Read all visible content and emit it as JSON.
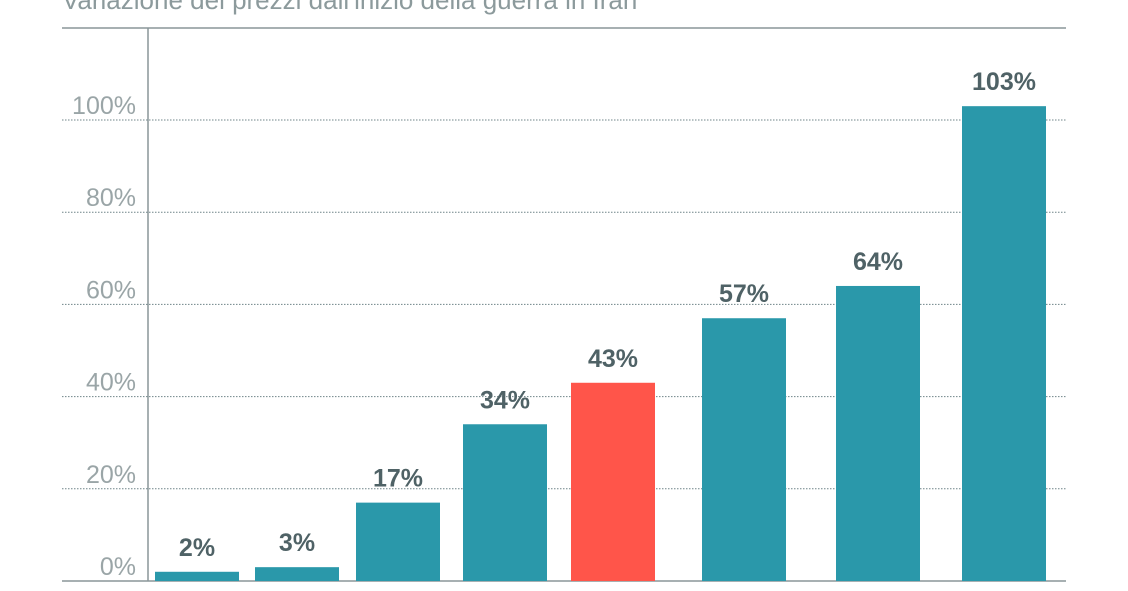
{
  "chart_data": {
    "type": "bar",
    "title": "Variazione dei prezzi dall'inizio della guerra in Iran",
    "xlabel": "",
    "ylabel": "",
    "ylim": [
      0,
      100
    ],
    "yticks": [
      "0%",
      "20%",
      "40%",
      "60%",
      "80%",
      "100%"
    ],
    "ytick_values": [
      0,
      20,
      40,
      60,
      80,
      100
    ],
    "grid": true,
    "values": [
      2,
      3,
      17,
      34,
      43,
      57,
      64,
      103
    ],
    "labels": [
      "2%",
      "3%",
      "17%",
      "34%",
      "43%",
      "57%",
      "64%",
      "103%"
    ],
    "highlight_index": 4,
    "colors": {
      "bar": "#2a98aa",
      "highlight": "#ff554a",
      "grid": "#6f8488",
      "axis": "#8a9699"
    }
  }
}
